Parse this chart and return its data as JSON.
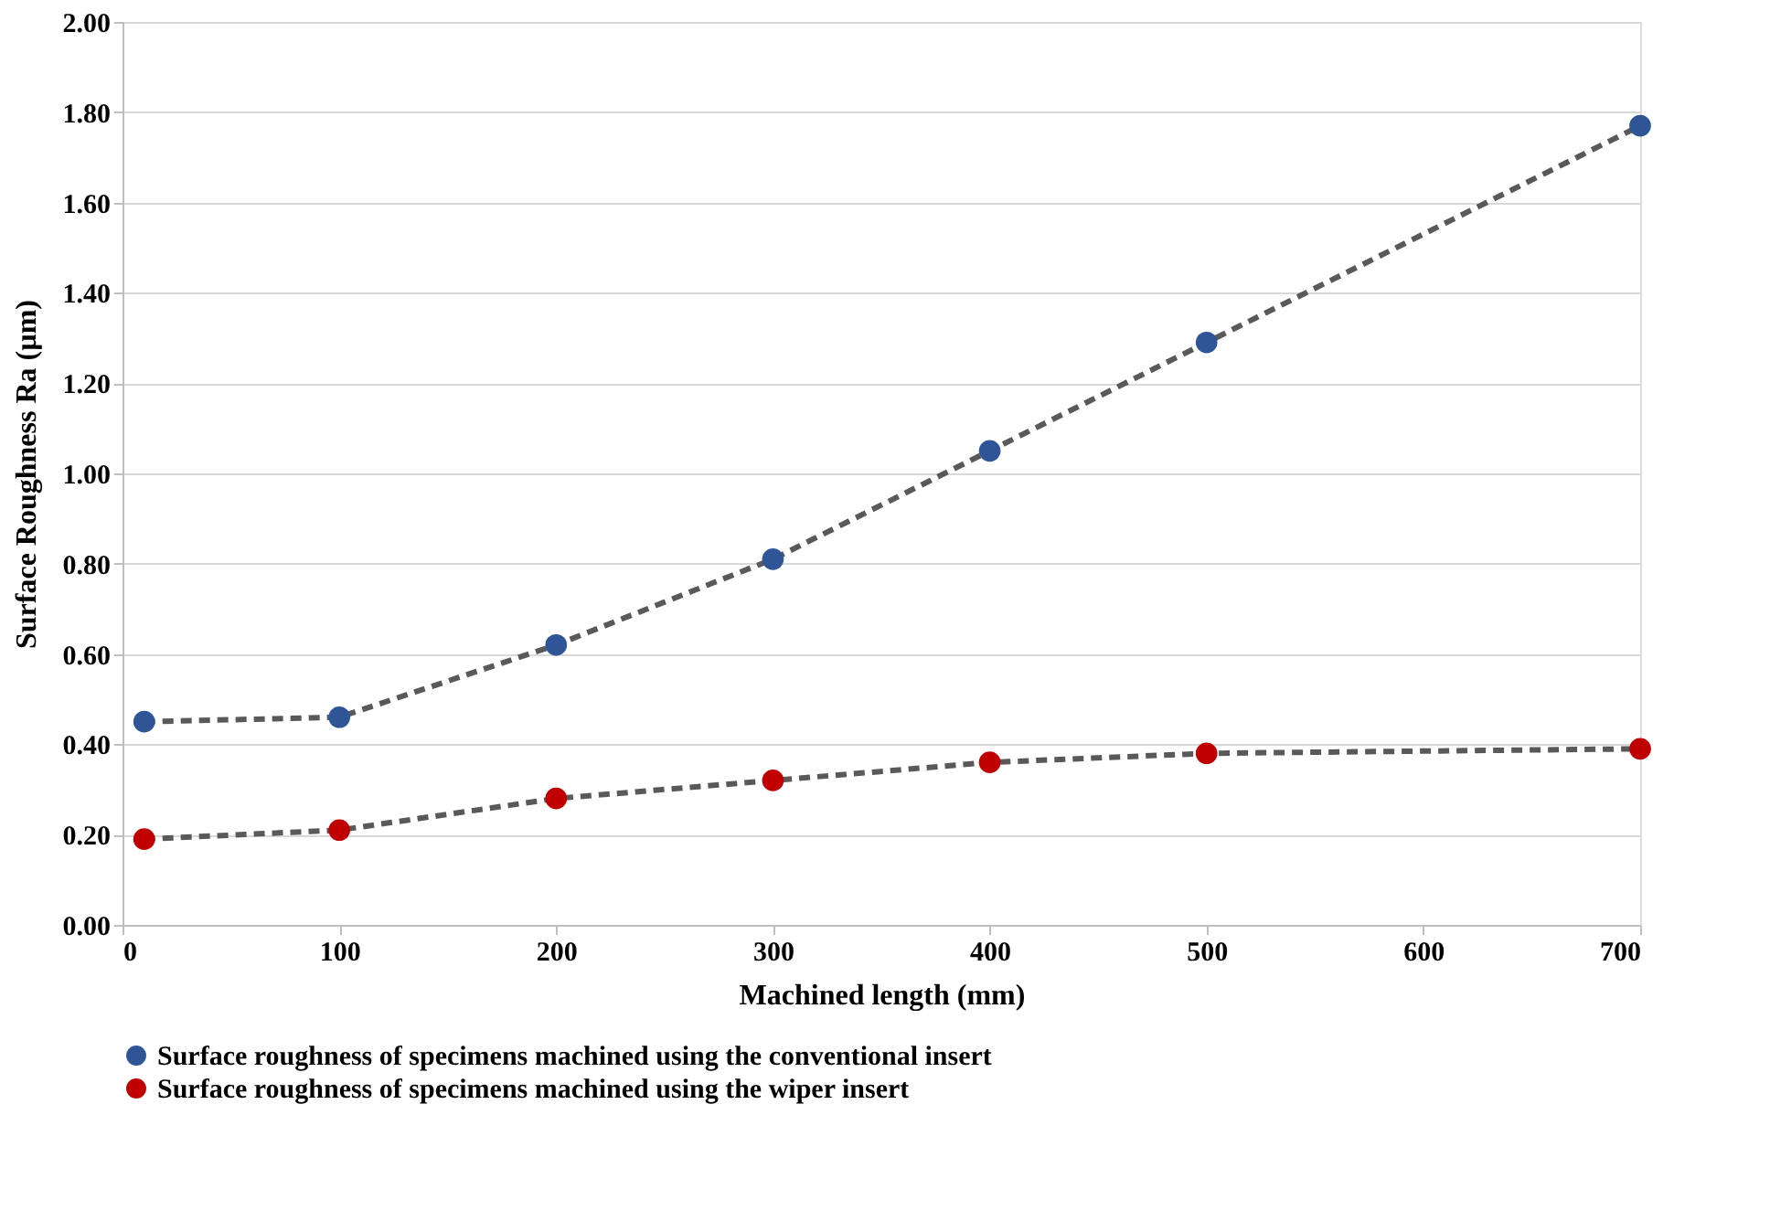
{
  "chart_data": {
    "type": "line",
    "xlabel": "Machined length (mm)",
    "ylabel": "Surface Roughness Ra (µm)",
    "xlim": [
      0,
      700
    ],
    "xticks": [
      0,
      100,
      200,
      300,
      400,
      500,
      600,
      700
    ],
    "ylim": [
      0,
      2
    ],
    "yticks": [
      {
        "value": 0,
        "label": "0.00"
      },
      {
        "value": 0.2,
        "label": "0.20"
      },
      {
        "value": 0.4,
        "label": "0.40"
      },
      {
        "value": 0.6,
        "label": "0.60"
      },
      {
        "value": 0.8,
        "label": "0.80"
      },
      {
        "value": 1,
        "label": "1.00"
      },
      {
        "value": 1.2,
        "label": "1.20"
      },
      {
        "value": 1.4,
        "label": "1.40"
      },
      {
        "value": 1.6,
        "label": "1.60"
      },
      {
        "value": 1.8,
        "label": "1.80"
      },
      {
        "value": 2,
        "label": "2.00"
      }
    ],
    "x": [
      10,
      100,
      200,
      300,
      400,
      500,
      700
    ],
    "series": [
      {
        "name": "Surface roughness of specimens machined using the conventional insert",
        "color": "#2f5597",
        "values": [
          0.45,
          0.46,
          0.62,
          0.81,
          1.05,
          1.29,
          1.77
        ]
      },
      {
        "name": "Surface roughness of specimens machined using the wiper insert",
        "color": "#c00000",
        "values": [
          0.19,
          0.21,
          0.28,
          0.32,
          0.36,
          0.38,
          0.39
        ]
      }
    ],
    "grid": "y",
    "legend": "bottom",
    "marker": "circle",
    "line_style": "dashed"
  }
}
